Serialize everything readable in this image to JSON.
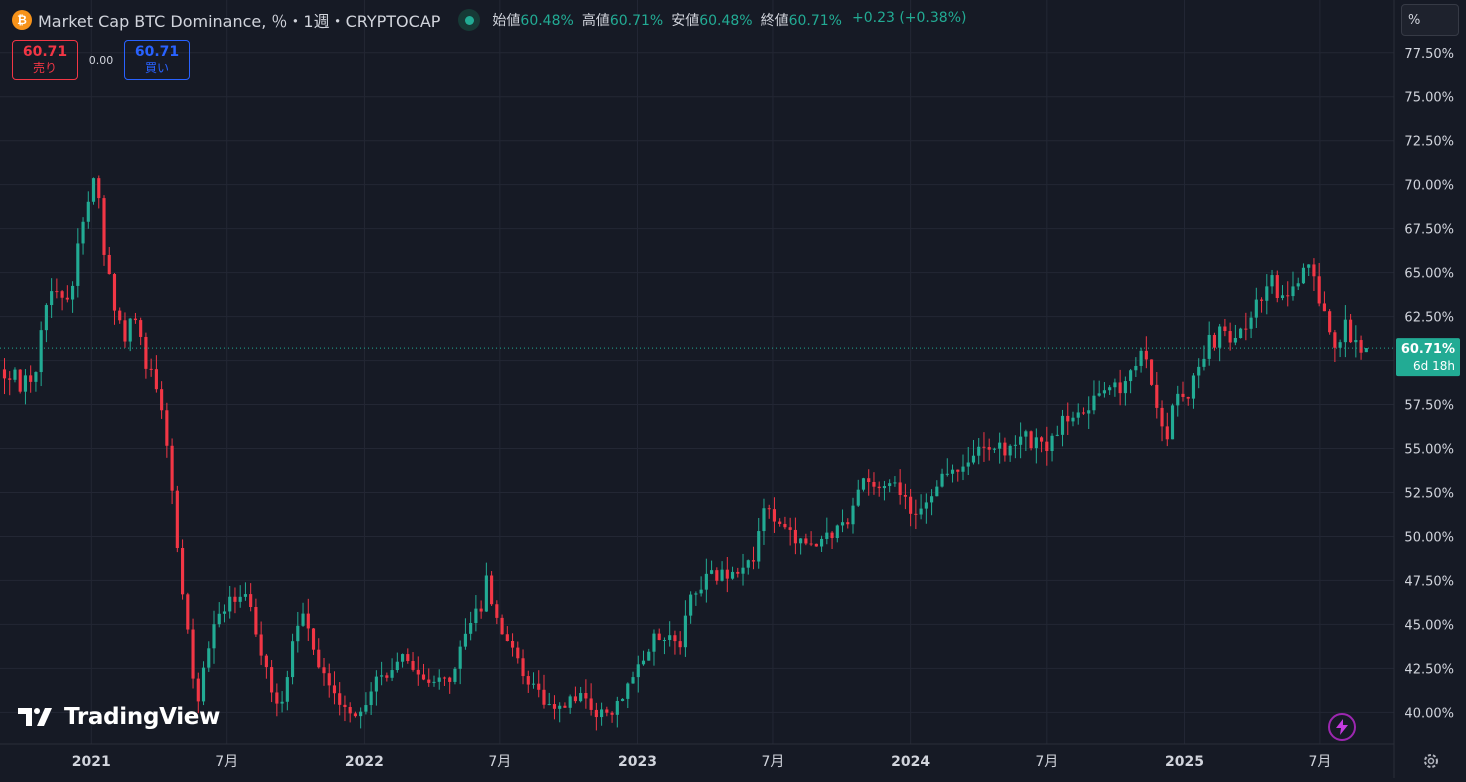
{
  "header": {
    "coin_icon_glyph": "₿",
    "symbol_title": "Market Cap BTC Dominance, ％・1週・CRYPTOCAP",
    "ohlc": {
      "open_label": "始値",
      "open_value": "60.48%",
      "high_label": "高値",
      "high_value": "60.71%",
      "low_label": "安値",
      "low_value": "60.48%",
      "close_label": "終値",
      "close_value": "60.71%",
      "change": "+0.23 (+0.38%)"
    }
  },
  "trade": {
    "sell_price": "60.71",
    "sell_label": "売り",
    "spread": "0.00",
    "buy_price": "60.71",
    "buy_label": "買い"
  },
  "price_scale": {
    "mode_label": "%",
    "last_price_label": "60.71%",
    "countdown_label": "6d 18h"
  },
  "brand": {
    "logo_text": "TradingView"
  },
  "icons": {
    "coin": "bitcoin-icon",
    "status": "market-open-dot-icon",
    "bolt": "lightning-bolt-icon",
    "settings": "gear-icon"
  },
  "colors": {
    "background": "#161a25",
    "up": "#22ab94",
    "down": "#f23645",
    "grid": "#232734",
    "text": "#d1d4dc",
    "last_price_bg": "#22ab94"
  },
  "chart_data": {
    "type": "candlestick",
    "title": "Market Cap BTC Dominance, ％・1週・CRYPTOCAP",
    "interval": "1週",
    "y_tick_labels": [
      "40.00%",
      "42.50%",
      "45.00%",
      "47.50%",
      "50.00%",
      "52.50%",
      "55.00%",
      "57.50%",
      "60.00%",
      "62.50%",
      "65.00%",
      "67.50%",
      "70.00%",
      "72.50%",
      "75.00%",
      "77.50%"
    ],
    "y_ticks": [
      40,
      42.5,
      45,
      47.5,
      50,
      52.5,
      55,
      57.5,
      60,
      62.5,
      65,
      67.5,
      70,
      72.5,
      75,
      77.5
    ],
    "ylim": [
      38.2,
      80.5
    ],
    "x_tick_labels": [
      "2021",
      "7月",
      "2022",
      "7月",
      "2023",
      "7月",
      "2024",
      "7月",
      "2025",
      "7月"
    ],
    "x_ticks": [
      "2021-01-01",
      "2021-07-01",
      "2022-01-01",
      "2022-07-01",
      "2023-01-01",
      "2023-07-01",
      "2024-01-01",
      "2024-07-01",
      "2025-01-01",
      "2025-07-01"
    ],
    "x_range": [
      "2020-09-01",
      "2025-10-08"
    ],
    "grid": true,
    "last_price": 60.71,
    "last_price_line": "dotted",
    "close_path": [
      [
        "2020-09-07",
        59.5
      ],
      [
        "2020-09-28",
        58.7
      ],
      [
        "2020-10-19",
        59.3
      ],
      [
        "2020-11-02",
        63.5
      ],
      [
        "2020-11-16",
        64.5
      ],
      [
        "2020-11-23",
        63.2
      ],
      [
        "2020-12-07",
        64.8
      ],
      [
        "2020-12-21",
        67.8
      ],
      [
        "2021-01-04",
        70.2
      ],
      [
        "2021-01-11",
        69.0
      ],
      [
        "2021-01-18",
        66.5
      ],
      [
        "2021-02-01",
        63.0
      ],
      [
        "2021-02-15",
        61.5
      ],
      [
        "2021-03-01",
        62.5
      ],
      [
        "2021-03-15",
        60.0
      ],
      [
        "2021-04-05",
        57.5
      ],
      [
        "2021-04-19",
        52.5
      ],
      [
        "2021-05-03",
        47.0
      ],
      [
        "2021-05-17",
        42.0
      ],
      [
        "2021-05-24",
        40.5
      ],
      [
        "2021-06-07",
        44.0
      ],
      [
        "2021-06-21",
        45.5
      ],
      [
        "2021-07-05",
        46.5
      ],
      [
        "2021-07-26",
        46.5
      ],
      [
        "2021-08-09",
        44.8
      ],
      [
        "2021-08-30",
        41.0
      ],
      [
        "2021-09-13",
        40.5
      ],
      [
        "2021-09-27",
        44.0
      ],
      [
        "2021-10-11",
        45.5
      ],
      [
        "2021-10-25",
        43.5
      ],
      [
        "2021-11-08",
        42.0
      ],
      [
        "2021-11-22",
        41.0
      ],
      [
        "2021-12-06",
        40.0
      ],
      [
        "2021-12-20",
        39.6
      ],
      [
        "2022-01-03",
        40.5
      ],
      [
        "2022-01-17",
        42.0
      ],
      [
        "2022-02-07",
        42.5
      ],
      [
        "2022-02-21",
        43.3
      ],
      [
        "2022-03-14",
        42.0
      ],
      [
        "2022-03-28",
        41.7
      ],
      [
        "2022-04-18",
        41.7
      ],
      [
        "2022-05-02",
        42.5
      ],
      [
        "2022-05-16",
        44.5
      ],
      [
        "2022-06-06",
        46.0
      ],
      [
        "2022-06-13",
        47.8
      ],
      [
        "2022-06-27",
        45.0
      ],
      [
        "2022-07-18",
        43.5
      ],
      [
        "2022-08-01",
        42.0
      ],
      [
        "2022-08-22",
        41.0
      ],
      [
        "2022-09-05",
        40.3
      ],
      [
        "2022-09-26",
        40.5
      ],
      [
        "2022-10-10",
        41.0
      ],
      [
        "2022-10-24",
        40.5
      ],
      [
        "2022-11-07",
        40.0
      ],
      [
        "2022-11-21",
        39.8
      ],
      [
        "2022-12-05",
        40.5
      ],
      [
        "2022-12-19",
        41.5
      ],
      [
        "2023-01-09",
        43.0
      ],
      [
        "2023-01-23",
        44.5
      ],
      [
        "2023-02-13",
        44.0
      ],
      [
        "2023-02-27",
        43.8
      ],
      [
        "2023-03-13",
        46.5
      ],
      [
        "2023-04-03",
        47.5
      ],
      [
        "2023-04-24",
        48.0
      ],
      [
        "2023-05-08",
        48.0
      ],
      [
        "2023-05-22",
        47.8
      ],
      [
        "2023-06-05",
        49.0
      ],
      [
        "2023-06-19",
        51.3
      ],
      [
        "2023-07-03",
        51.0
      ],
      [
        "2023-07-17",
        50.5
      ],
      [
        "2023-08-07",
        49.5
      ],
      [
        "2023-08-28",
        49.5
      ],
      [
        "2023-09-18",
        50.0
      ],
      [
        "2023-10-09",
        51.0
      ],
      [
        "2023-10-23",
        52.8
      ],
      [
        "2023-11-06",
        53.5
      ],
      [
        "2023-11-20",
        52.5
      ],
      [
        "2023-12-04",
        53.0
      ],
      [
        "2023-12-25",
        52.0
      ],
      [
        "2024-01-08",
        51.2
      ],
      [
        "2024-01-22",
        52.0
      ],
      [
        "2024-02-05",
        53.0
      ],
      [
        "2024-02-26",
        53.5
      ],
      [
        "2024-03-18",
        54.0
      ],
      [
        "2024-04-08",
        55.5
      ],
      [
        "2024-04-22",
        55.0
      ],
      [
        "2024-05-13",
        55.0
      ],
      [
        "2024-06-03",
        55.5
      ],
      [
        "2024-06-24",
        55.0
      ],
      [
        "2024-07-08",
        55.5
      ],
      [
        "2024-07-29",
        57.0
      ],
      [
        "2024-08-19",
        57.5
      ],
      [
        "2024-09-09",
        57.8
      ],
      [
        "2024-09-30",
        58.3
      ],
      [
        "2024-10-14",
        59.0
      ],
      [
        "2024-11-04",
        60.5
      ],
      [
        "2024-11-11",
        59.8
      ],
      [
        "2024-11-25",
        57.5
      ],
      [
        "2024-12-09",
        55.5
      ],
      [
        "2024-12-23",
        58.5
      ],
      [
        "2025-01-06",
        58.0
      ],
      [
        "2025-01-20",
        59.5
      ],
      [
        "2025-02-03",
        61.0
      ],
      [
        "2025-02-17",
        61.5
      ],
      [
        "2025-03-03",
        61.3
      ],
      [
        "2025-03-17",
        61.8
      ],
      [
        "2025-04-07",
        63.0
      ],
      [
        "2025-04-28",
        64.5
      ],
      [
        "2025-05-12",
        63.5
      ],
      [
        "2025-05-26",
        64.5
      ],
      [
        "2025-06-16",
        65.5
      ],
      [
        "2025-06-30",
        63.5
      ],
      [
        "2025-07-21",
        61.0
      ],
      [
        "2025-08-04",
        61.8
      ],
      [
        "2025-08-25",
        60.48
      ],
      [
        "2025-09-01",
        60.71
      ]
    ],
    "current_bar": {
      "time": "2025-09-01",
      "open": 60.48,
      "high": 60.71,
      "low": 60.48,
      "close": 60.71
    }
  }
}
